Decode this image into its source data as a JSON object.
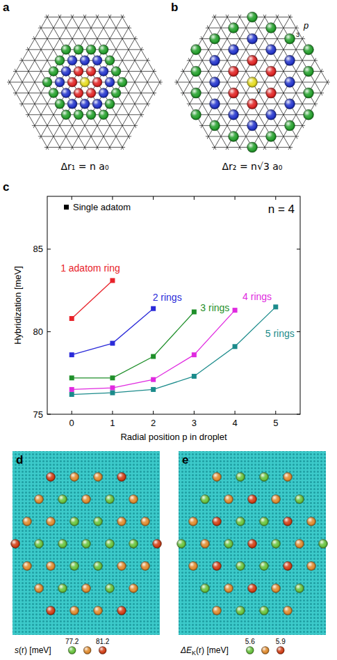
{
  "panels": {
    "a": {
      "panel_label": "a",
      "caption": "Δr₁ = n a₀",
      "rings": 3,
      "ring_colors": [
        "#e6dc1e",
        "#e02222",
        "#2233cc",
        "#22a02a"
      ]
    },
    "b": {
      "panel_label": "b",
      "caption": "Δr₂ = n√3 a₀",
      "rings": 3,
      "ring_colors": [
        "#e6dc1e",
        "#e02222",
        "#2233cc",
        "#22a02a"
      ],
      "labels": {
        "center": "0",
        "ring": "3",
        "axis": "p"
      }
    },
    "d": {
      "panel_label": "d",
      "colorbar": {
        "label": {
          "main": "s",
          "rest": "(r) [meV]"
        },
        "min": 77.2,
        "max": 81.2,
        "colors": [
          "#66c23a",
          "#e08a2c",
          "#d23c12"
        ]
      },
      "atoms": [
        [
          2,
          1,
          1,
          2
        ],
        [
          1,
          0,
          1,
          0,
          1
        ],
        [
          1,
          1,
          0,
          0,
          1,
          1
        ],
        [
          2,
          0,
          0,
          0,
          0,
          0,
          2
        ],
        [
          1,
          1,
          0,
          0,
          1,
          1
        ],
        [
          1,
          0,
          1,
          0,
          1
        ],
        [
          2,
          1,
          1,
          2
        ]
      ]
    },
    "e": {
      "panel_label": "e",
      "colorbar": {
        "label": {
          "main": "ΔE",
          "sub": "K",
          "rest": "(r) [meV]"
        },
        "min": 5.6,
        "max": 5.9,
        "colors": [
          "#66c23a",
          "#e08a2c",
          "#d23c12"
        ]
      },
      "atoms": [
        [
          1,
          0,
          0,
          1
        ],
        [
          0,
          1,
          2,
          1,
          0
        ],
        [
          1,
          2,
          0,
          0,
          2,
          1
        ],
        [
          0,
          1,
          0,
          2,
          0,
          1,
          0
        ],
        [
          1,
          2,
          0,
          0,
          2,
          1
        ],
        [
          0,
          1,
          2,
          1,
          0
        ],
        [
          1,
          0,
          0,
          1
        ]
      ]
    }
  },
  "chart_data": {
    "type": "line",
    "panel_label": "c",
    "xlabel": "Radial position p in droplet",
    "ylabel": "Hybridization [meV]",
    "annotation": "n = 4",
    "legend_label": "Single adatom",
    "legend": "upper left",
    "marker": "square",
    "grid": false,
    "xlim": [
      -0.6,
      5.6
    ],
    "xticks": [
      0,
      1,
      2,
      3,
      4,
      5
    ],
    "ylim": [
      75,
      88.2
    ],
    "yticks": [
      75,
      80,
      85
    ],
    "series": [
      {
        "name": "1 adatom ring",
        "color": "#e8222a",
        "x": [
          0,
          1
        ],
        "values": [
          80.8,
          83.1
        ]
      },
      {
        "name": "2 rings",
        "color": "#2b2bd9",
        "x": [
          0,
          1,
          2
        ],
        "values": [
          78.6,
          79.3,
          81.4
        ]
      },
      {
        "name": "3 rings",
        "color": "#1f8f2a",
        "x": [
          0,
          1,
          2,
          3
        ],
        "values": [
          77.2,
          77.2,
          78.5,
          81.2
        ]
      },
      {
        "name": "4 rings",
        "color": "#e02ae0",
        "x": [
          0,
          1,
          2,
          3,
          4
        ],
        "values": [
          76.5,
          76.6,
          77.1,
          78.6,
          81.3
        ]
      },
      {
        "name": "5 rings",
        "color": "#1b8b8b",
        "x": [
          0,
          1,
          2,
          3,
          4,
          5
        ],
        "values": [
          76.2,
          76.3,
          76.5,
          77.3,
          79.1,
          81.5
        ]
      }
    ]
  }
}
